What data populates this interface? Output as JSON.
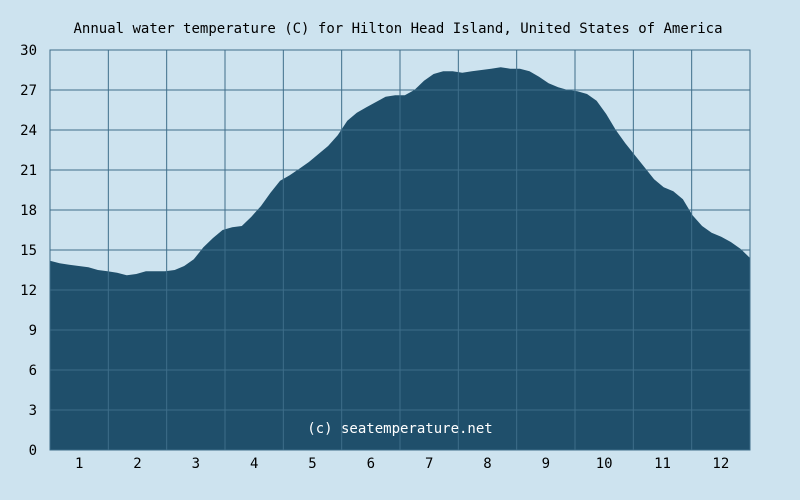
{
  "chart_data": {
    "type": "area",
    "title": "Annual water temperature (C) for Hilton Head Island, United States of America",
    "credit": "(c) seatemperature.net",
    "xlabel": "",
    "ylabel": "",
    "x_tick_labels": [
      "1",
      "2",
      "3",
      "4",
      "5",
      "6",
      "7",
      "8",
      "9",
      "10",
      "11",
      "12"
    ],
    "y_tick_labels": [
      "0",
      "3",
      "6",
      "9",
      "12",
      "15",
      "18",
      "21",
      "24",
      "27",
      "30"
    ],
    "ylim": [
      0,
      30
    ],
    "xlim": [
      0,
      365
    ],
    "grid": true,
    "colors": {
      "background": "#cde3ef",
      "plot_background": "#cde3ef",
      "area_fill": "#1f4f6b",
      "grid_line": "#3e6e8a",
      "text": "#000000",
      "credit_text": "#ffffff"
    },
    "series": [
      {
        "values_by_day": [
          {
            "day": 0,
            "value": 14.2
          },
          {
            "day": 5,
            "value": 14.0
          },
          {
            "day": 10,
            "value": 13.9
          },
          {
            "day": 15,
            "value": 13.8
          },
          {
            "day": 20,
            "value": 13.7
          },
          {
            "day": 25,
            "value": 13.5
          },
          {
            "day": 30,
            "value": 13.4
          },
          {
            "day": 35,
            "value": 13.3
          },
          {
            "day": 40,
            "value": 13.1
          },
          {
            "day": 45,
            "value": 13.2
          },
          {
            "day": 50,
            "value": 13.4
          },
          {
            "day": 55,
            "value": 13.4
          },
          {
            "day": 60,
            "value": 13.4
          },
          {
            "day": 65,
            "value": 13.5
          },
          {
            "day": 70,
            "value": 13.8
          },
          {
            "day": 75,
            "value": 14.3
          },
          {
            "day": 80,
            "value": 15.2
          },
          {
            "day": 85,
            "value": 15.9
          },
          {
            "day": 90,
            "value": 16.5
          },
          {
            "day": 95,
            "value": 16.7
          },
          {
            "day": 100,
            "value": 16.8
          },
          {
            "day": 105,
            "value": 17.5
          },
          {
            "day": 110,
            "value": 18.3
          },
          {
            "day": 115,
            "value": 19.3
          },
          {
            "day": 120,
            "value": 20.2
          },
          {
            "day": 125,
            "value": 20.6
          },
          {
            "day": 130,
            "value": 21.1
          },
          {
            "day": 135,
            "value": 21.6
          },
          {
            "day": 140,
            "value": 22.2
          },
          {
            "day": 145,
            "value": 22.8
          },
          {
            "day": 150,
            "value": 23.6
          },
          {
            "day": 155,
            "value": 24.7
          },
          {
            "day": 160,
            "value": 25.3
          },
          {
            "day": 165,
            "value": 25.7
          },
          {
            "day": 170,
            "value": 26.1
          },
          {
            "day": 175,
            "value": 26.5
          },
          {
            "day": 180,
            "value": 26.6
          },
          {
            "day": 185,
            "value": 26.6
          },
          {
            "day": 190,
            "value": 27.0
          },
          {
            "day": 195,
            "value": 27.7
          },
          {
            "day": 200,
            "value": 28.2
          },
          {
            "day": 205,
            "value": 28.4
          },
          {
            "day": 210,
            "value": 28.4
          },
          {
            "day": 215,
            "value": 28.3
          },
          {
            "day": 220,
            "value": 28.4
          },
          {
            "day": 225,
            "value": 28.5
          },
          {
            "day": 230,
            "value": 28.6
          },
          {
            "day": 235,
            "value": 28.7
          },
          {
            "day": 240,
            "value": 28.6
          },
          {
            "day": 245,
            "value": 28.6
          },
          {
            "day": 250,
            "value": 28.4
          },
          {
            "day": 255,
            "value": 28.0
          },
          {
            "day": 260,
            "value": 27.5
          },
          {
            "day": 265,
            "value": 27.2
          },
          {
            "day": 270,
            "value": 27.0
          },
          {
            "day": 275,
            "value": 26.9
          },
          {
            "day": 280,
            "value": 26.7
          },
          {
            "day": 285,
            "value": 26.2
          },
          {
            "day": 290,
            "value": 25.2
          },
          {
            "day": 295,
            "value": 24.0
          },
          {
            "day": 300,
            "value": 23.0
          },
          {
            "day": 305,
            "value": 22.1
          },
          {
            "day": 310,
            "value": 21.2
          },
          {
            "day": 315,
            "value": 20.3
          },
          {
            "day": 320,
            "value": 19.7
          },
          {
            "day": 325,
            "value": 19.4
          },
          {
            "day": 330,
            "value": 18.8
          },
          {
            "day": 335,
            "value": 17.6
          },
          {
            "day": 340,
            "value": 16.8
          },
          {
            "day": 345,
            "value": 16.3
          },
          {
            "day": 350,
            "value": 16.0
          },
          {
            "day": 355,
            "value": 15.6
          },
          {
            "day": 360,
            "value": 15.1
          },
          {
            "day": 365,
            "value": 14.4
          }
        ]
      }
    ]
  }
}
